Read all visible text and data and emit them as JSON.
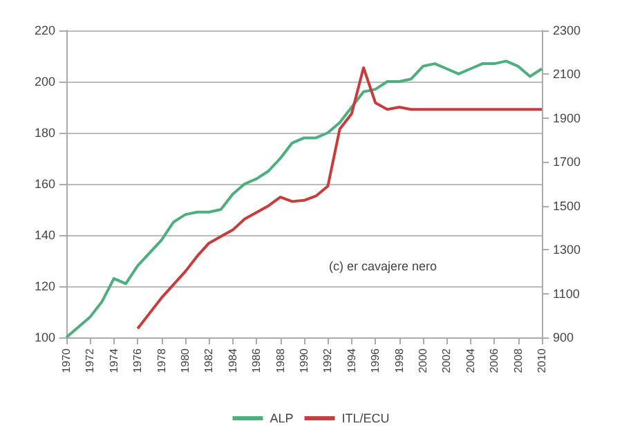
{
  "chart_data": {
    "type": "line",
    "x": [
      1970,
      1971,
      1972,
      1973,
      1974,
      1975,
      1976,
      1977,
      1978,
      1979,
      1980,
      1981,
      1982,
      1983,
      1984,
      1985,
      1986,
      1987,
      1988,
      1989,
      1990,
      1991,
      1992,
      1993,
      1994,
      1995,
      1996,
      1997,
      1998,
      1999,
      2000,
      2001,
      2002,
      2003,
      2004,
      2005,
      2006,
      2007,
      2008,
      2009,
      2010
    ],
    "series": [
      {
        "name": "ALP",
        "color": "#4caf7d",
        "values": [
          100,
          104,
          108,
          114,
          123,
          121,
          128,
          133,
          138,
          145,
          148,
          149,
          149,
          150,
          156,
          160,
          162,
          165,
          170,
          176,
          178,
          178,
          180,
          184,
          190,
          196,
          197,
          200,
          200,
          201,
          206,
          207,
          205,
          203,
          205,
          207,
          207,
          208,
          206,
          202,
          205
        ]
      },
      {
        "name": "ITL/ECU",
        "color": "#c83c3c",
        "axis": "y2",
        "values": [
          null,
          null,
          null,
          null,
          null,
          null,
          940,
          1010,
          1080,
          1140,
          1200,
          1270,
          1330,
          1360,
          1390,
          1440,
          1470,
          1500,
          1540,
          1520,
          1525,
          1545,
          1590,
          1850,
          1920,
          2130,
          1970,
          1940,
          1950,
          1940,
          1940,
          1940,
          1940,
          1940,
          1940,
          1940,
          1940,
          1940,
          1940,
          1940,
          1940
        ]
      }
    ],
    "xlim": [
      1970,
      2010
    ],
    "xticks": [
      1970,
      1972,
      1974,
      1976,
      1978,
      1980,
      1982,
      1984,
      1986,
      1988,
      1990,
      1992,
      1994,
      1996,
      1998,
      2000,
      2002,
      2004,
      2006,
      2008,
      2010
    ],
    "ylim": [
      100,
      220
    ],
    "yticks": [
      100,
      120,
      140,
      160,
      180,
      200,
      220
    ],
    "y2lim": [
      900,
      2300
    ],
    "y2ticks": [
      900,
      1100,
      1300,
      1500,
      1700,
      1900,
      2100,
      2300
    ],
    "grid": "y",
    "legend": "bottom",
    "marker": "none",
    "line_style": "solid",
    "annotations": [
      "(c) er cavajere nero"
    ]
  }
}
